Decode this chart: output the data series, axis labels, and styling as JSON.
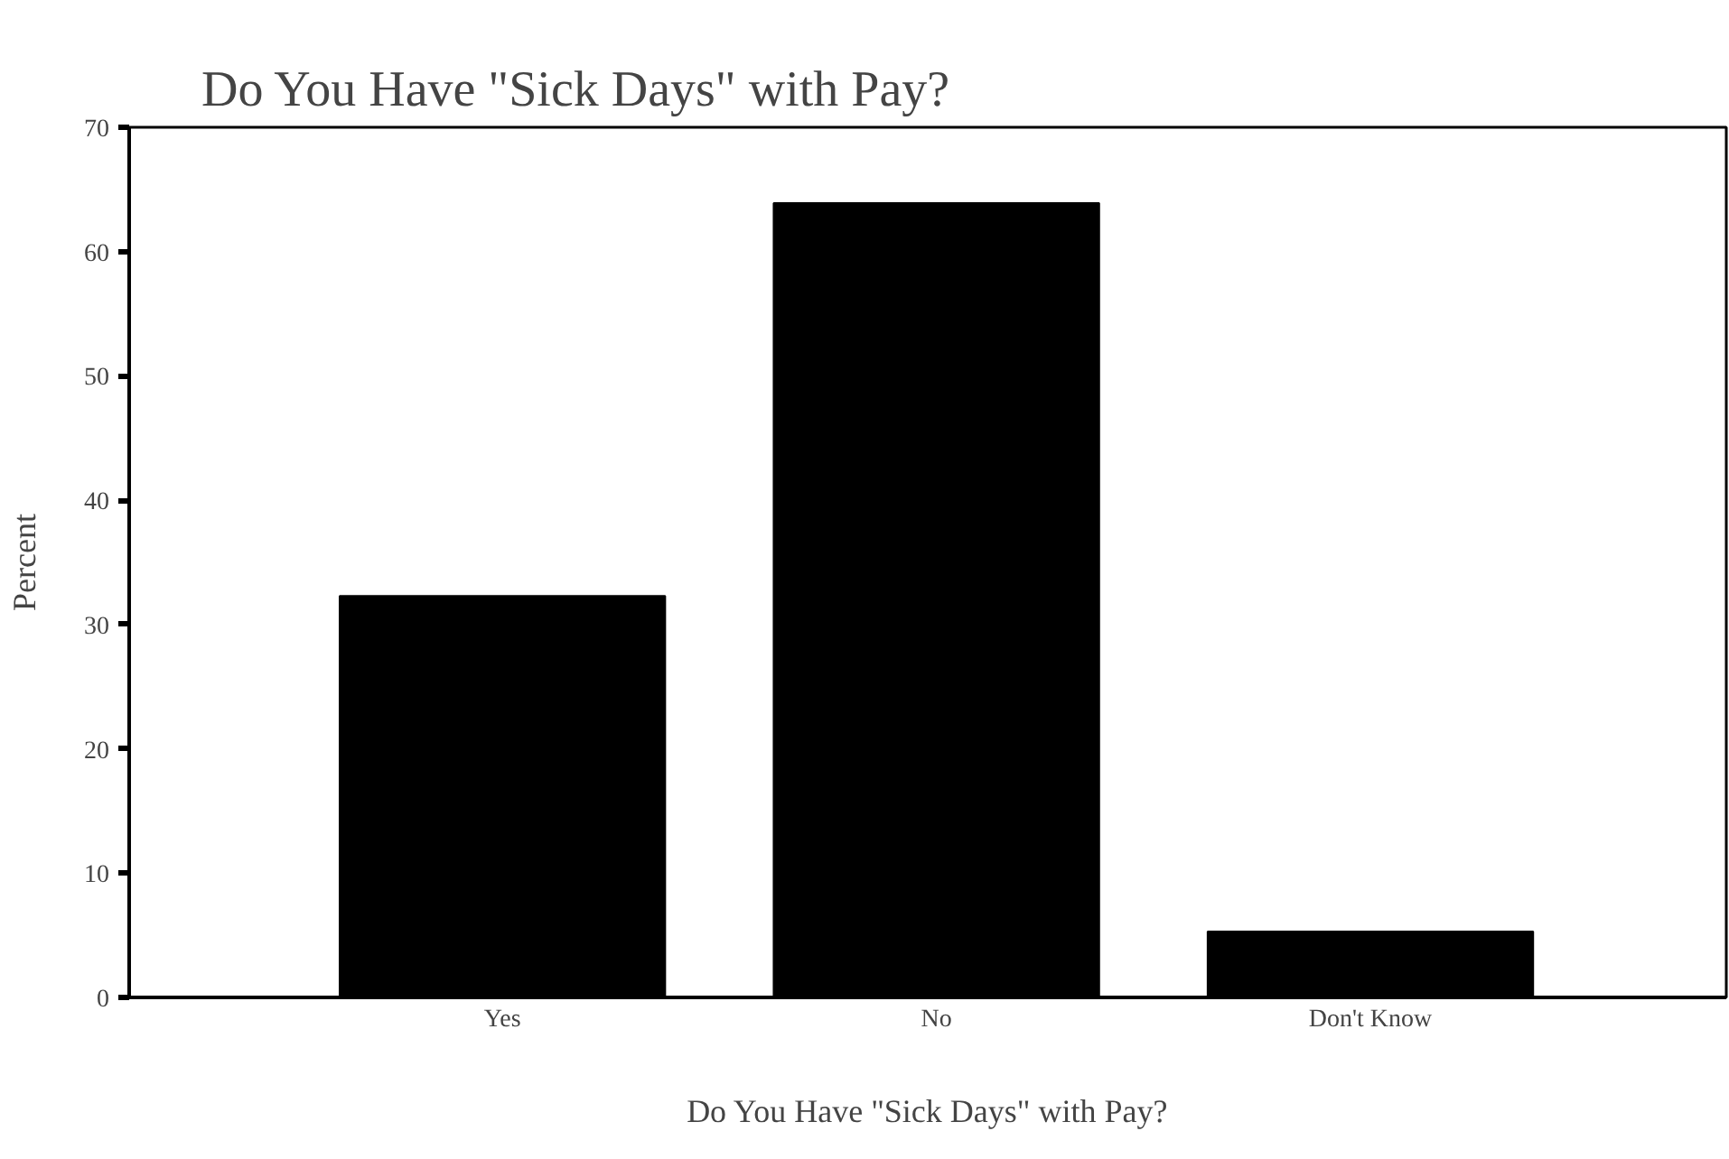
{
  "chart_data": {
    "type": "bar",
    "title": "Do You Have \"Sick Days\" with Pay?",
    "xlabel": "Do You Have \"Sick Days\" with Pay?",
    "ylabel": "Percent",
    "categories": [
      "Yes",
      "No",
      "Don't Know"
    ],
    "values": [
      32.3,
      63.9,
      5.3
    ],
    "color": "#000000",
    "ylim": [
      0,
      70
    ],
    "yticks": [
      0,
      10,
      20,
      30,
      40,
      50,
      60,
      70
    ],
    "grid": false
  }
}
